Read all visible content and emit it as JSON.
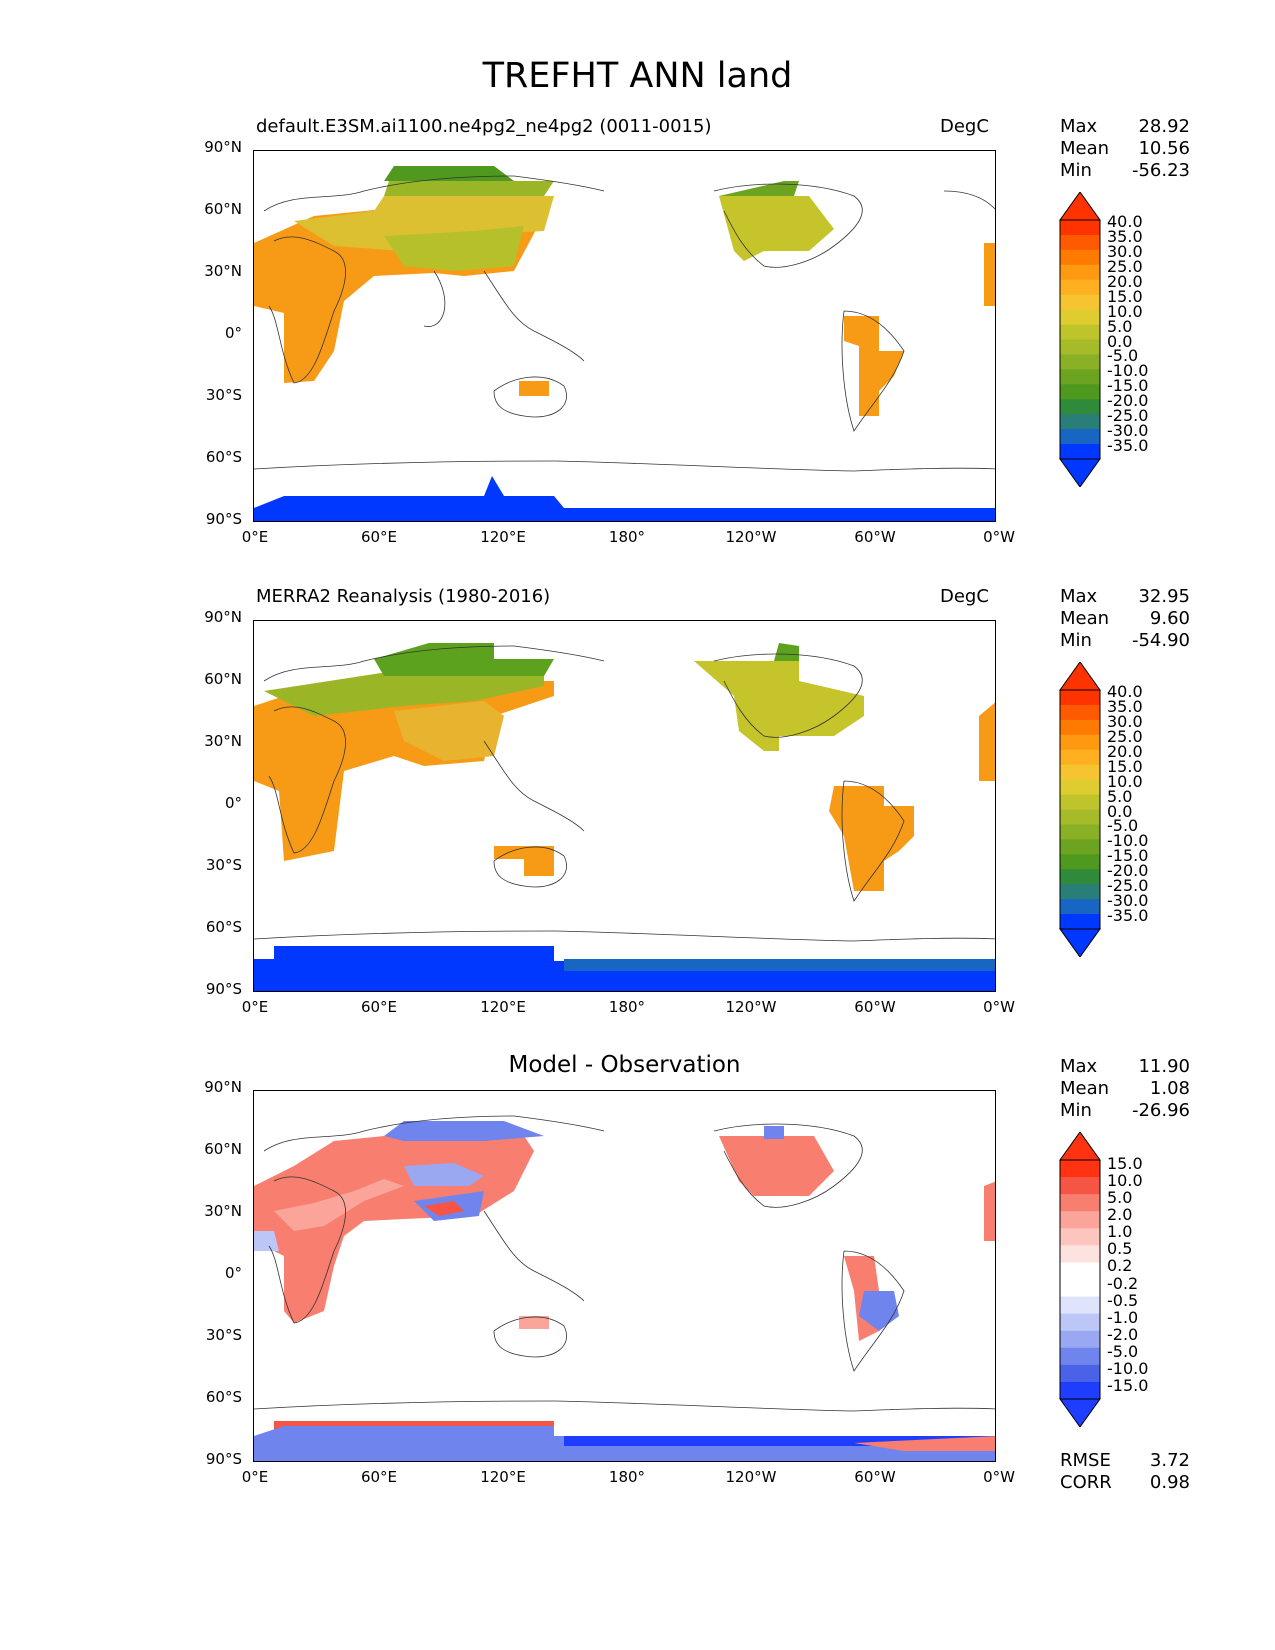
{
  "title": "TREFHT ANN land",
  "panels": [
    {
      "title": "default.E3SM.ai1100.ne4pg2_ne4pg2 (0011-0015)",
      "units": "DegC",
      "stats": [
        {
          "label": "Max",
          "value": "28.92"
        },
        {
          "label": "Mean",
          "value": "10.56"
        },
        {
          "label": "Min",
          "value": "-56.23"
        }
      ],
      "colorbar_labels": [
        "40.0",
        "35.0",
        "30.0",
        "25.0",
        "20.0",
        "15.0",
        "10.0",
        "5.0",
        "0.0",
        "-5.0",
        "-10.0",
        "-15.0",
        "-20.0",
        "-25.0",
        "-30.0",
        "-35.0"
      ]
    },
    {
      "title": "MERRA2 Reanalysis (1980-2016)",
      "units": "DegC",
      "stats": [
        {
          "label": "Max",
          "value": "32.95"
        },
        {
          "label": "Mean",
          "value": "9.60"
        },
        {
          "label": "Min",
          "value": "-54.90"
        }
      ],
      "colorbar_labels": [
        "40.0",
        "35.0",
        "30.0",
        "25.0",
        "20.0",
        "15.0",
        "10.0",
        "5.0",
        "0.0",
        "-5.0",
        "-10.0",
        "-15.0",
        "-20.0",
        "-25.0",
        "-30.0",
        "-35.0"
      ]
    },
    {
      "title": "Model - Observation",
      "units": "",
      "stats": [
        {
          "label": "Max",
          "value": "11.90"
        },
        {
          "label": "Mean",
          "value": "1.08"
        },
        {
          "label": "Min",
          "value": "-26.96"
        }
      ],
      "colorbar_labels": [
        "15.0",
        "10.0",
        "5.0",
        "2.0",
        "1.0",
        "0.5",
        "0.2",
        "-0.2",
        "-0.5",
        "-1.0",
        "-2.0",
        "-5.0",
        "-10.0",
        "-15.0"
      ],
      "bottom_stats": [
        {
          "label": "RMSE",
          "value": "3.72"
        },
        {
          "label": "CORR",
          "value": "0.98"
        }
      ]
    }
  ],
  "lat_labels": [
    "90°N",
    "60°N",
    "30°N",
    "0°",
    "30°S",
    "60°S",
    "90°S"
  ],
  "lon_labels": [
    "0°E",
    "60°E",
    "120°E",
    "180°",
    "120°W",
    "60°W",
    "0°W"
  ],
  "colors": {
    "temp_scale": [
      "#ff3300",
      "#ff5a00",
      "#ff7a00",
      "#ff9a10",
      "#ffb020",
      "#f5c430",
      "#dfcc2f",
      "#bfc42a",
      "#a5bb28",
      "#8ab025",
      "#6ca421",
      "#4f991e",
      "#2f8a3a",
      "#2a7e78",
      "#1766c4",
      "#0038ff"
    ],
    "diff_scale": [
      "#ff3311",
      "#f65545",
      "#f87e70",
      "#fba59a",
      "#fcc6bf",
      "#fde3df",
      "#ffffff",
      "#ffffff",
      "#dfe3fb",
      "#bcc6f7",
      "#9aa8f2",
      "#6f84ec",
      "#4a62e8",
      "#1e3dff"
    ]
  }
}
